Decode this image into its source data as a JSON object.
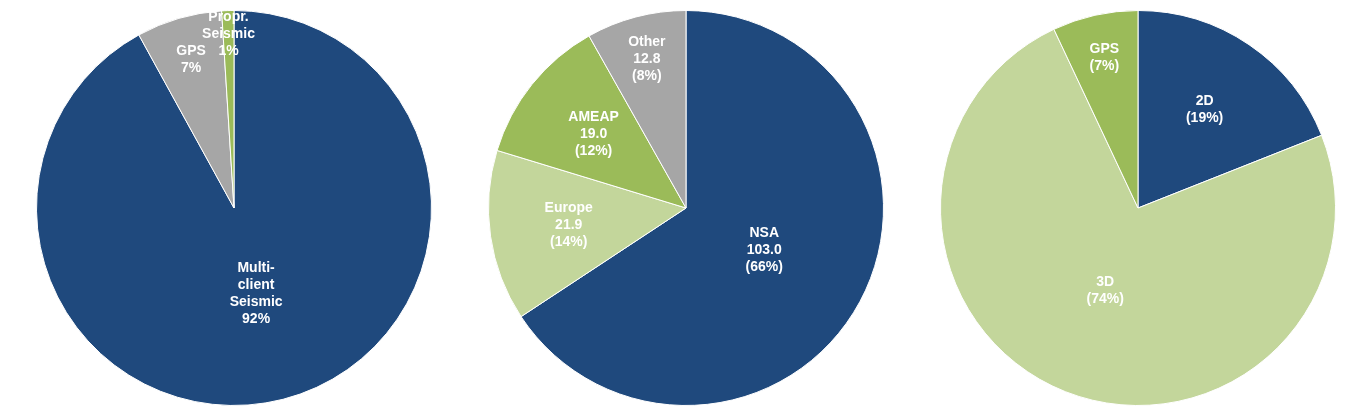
{
  "chart_data": [
    {
      "type": "pie",
      "categories": [
        "Multi-client Seismic",
        "GPS",
        "Propr. Seismic"
      ],
      "values": [
        92,
        7,
        1
      ],
      "colors": [
        "#1f497d",
        "#a6a6a6",
        "#9bbb59"
      ],
      "value_labels": [
        "92%",
        "7%",
        "1%"
      ],
      "legend": false
    },
    {
      "type": "pie",
      "categories": [
        "NSA",
        "Europe",
        "AMEAP",
        "Other"
      ],
      "values": [
        103.0,
        21.9,
        19.0,
        12.8
      ],
      "colors": [
        "#1f497d",
        "#c3d69b",
        "#9bbb59",
        "#a6a6a6"
      ],
      "value_labels": [
        "103.0 (66%)",
        "21.9 (14%)",
        "19.0 (12%)",
        "12.8 (8%)"
      ],
      "legend": false
    },
    {
      "type": "pie",
      "categories": [
        "2D",
        "3D",
        "GPS"
      ],
      "values": [
        19,
        74,
        7
      ],
      "colors": [
        "#1f497d",
        "#c3d69b",
        "#9bbb59"
      ],
      "value_labels": [
        "(19%)",
        "(74%)",
        "(7%)"
      ],
      "legend": false
    }
  ]
}
